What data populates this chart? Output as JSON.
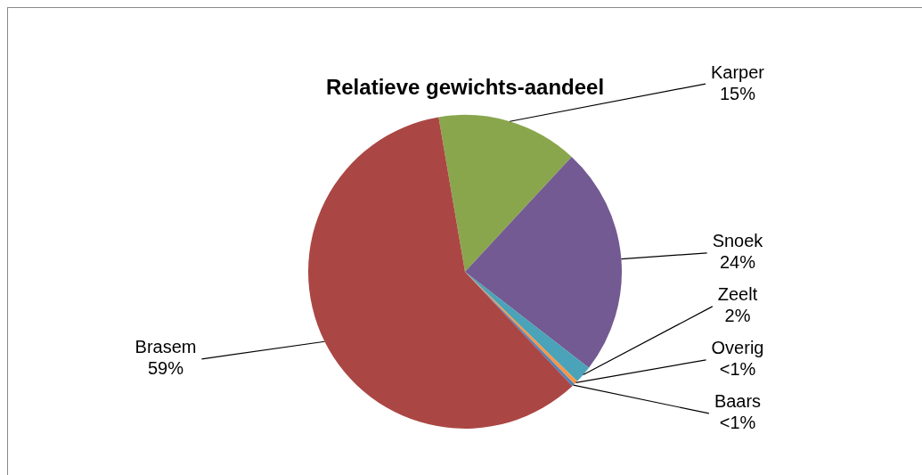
{
  "chart_data": {
    "type": "pie",
    "title": "Relatieve gewichts-aandeel",
    "categories": [
      "Karper",
      "Snoek",
      "Zeelt",
      "Overig",
      "Baars",
      "Brasem"
    ],
    "values": [
      14.6,
      23.6,
      1.8,
      0.4,
      0.3,
      59.3
    ],
    "colors": [
      "#8aa64d",
      "#735a92",
      "#4aa3b8",
      "#f79646",
      "#4f81bd",
      "#aa4744"
    ],
    "value_labels": [
      "15%",
      "24%",
      "2%",
      "<1%",
      "<1%",
      "59%"
    ],
    "legend": false
  }
}
